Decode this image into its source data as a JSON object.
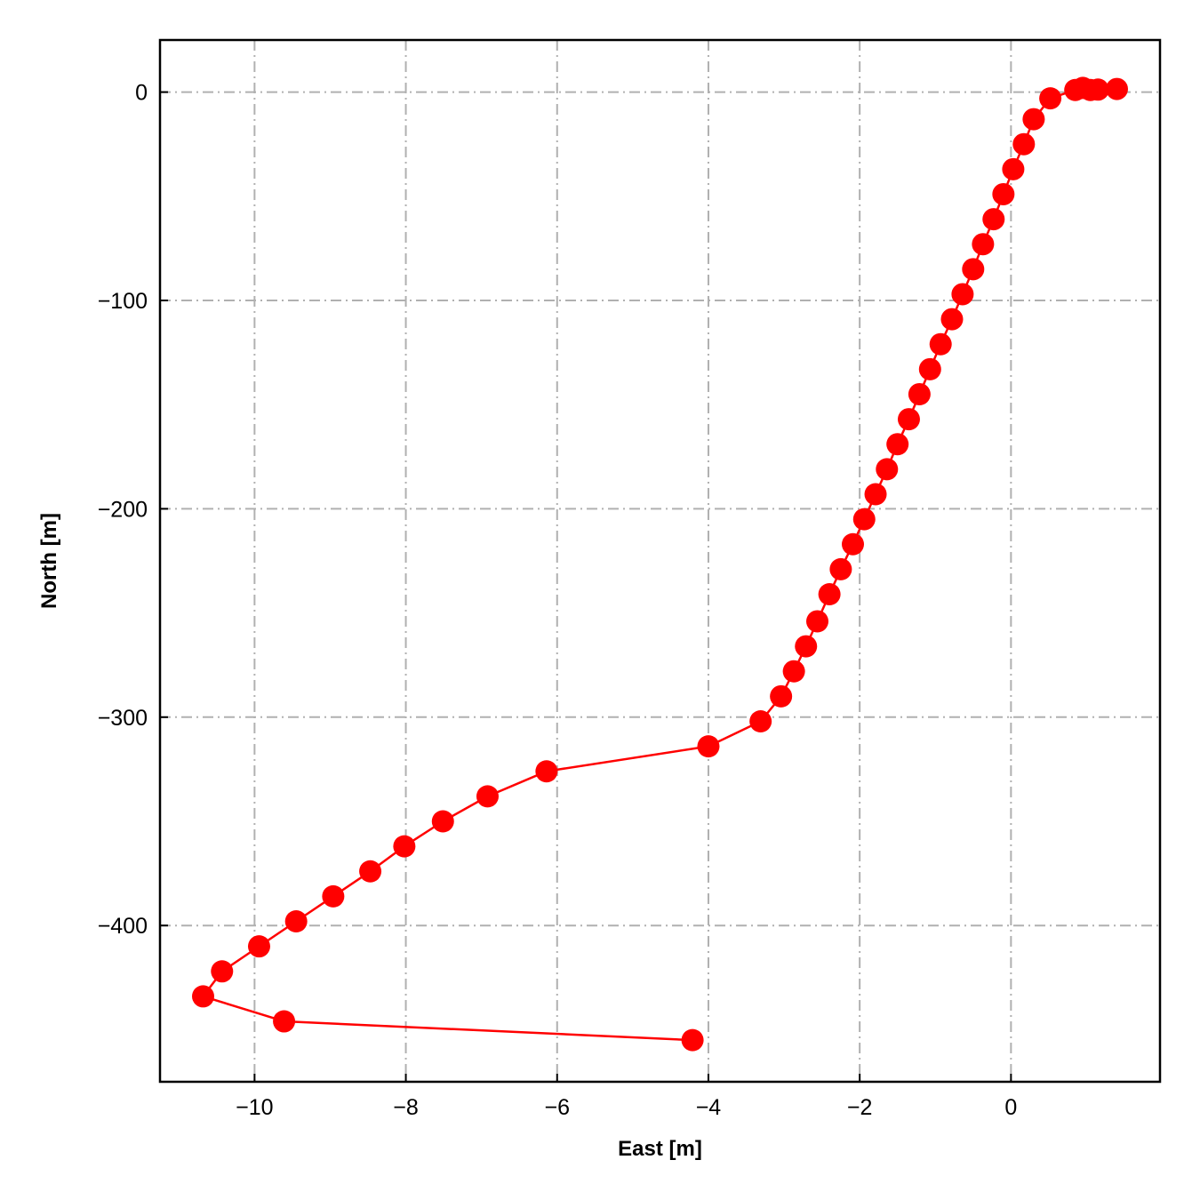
{
  "chart_data": {
    "type": "line",
    "title": "",
    "xlabel": "East [m]",
    "ylabel": "North [m]",
    "xlim": [
      -11.25,
      1.97
    ],
    "ylim": [
      -475,
      25
    ],
    "xticks": [
      -10,
      -8,
      -6,
      -4,
      -2,
      0
    ],
    "yticks": [
      0,
      -100,
      -200,
      -300,
      -400
    ],
    "xtick_labels": [
      "−10",
      "−8",
      "−6",
      "−4",
      "−2",
      "0"
    ],
    "ytick_labels": [
      "0",
      "−100",
      "−200",
      "−300",
      "−400"
    ],
    "grid": true,
    "legend": "none",
    "series": [
      {
        "color": "#ff0000",
        "marker": "circle",
        "points": [
          {
            "x": 1.4,
            "y": 1.5
          },
          {
            "x": 1.15,
            "y": 1.2
          },
          {
            "x": 1.05,
            "y": 1.0
          },
          {
            "x": 0.95,
            "y": 2.0
          },
          {
            "x": 0.85,
            "y": 1.0
          },
          {
            "x": 0.52,
            "y": -3
          },
          {
            "x": 0.3,
            "y": -13
          },
          {
            "x": 0.17,
            "y": -25
          },
          {
            "x": 0.03,
            "y": -37
          },
          {
            "x": -0.1,
            "y": -49
          },
          {
            "x": -0.23,
            "y": -61
          },
          {
            "x": -0.37,
            "y": -73
          },
          {
            "x": -0.5,
            "y": -85
          },
          {
            "x": -0.64,
            "y": -97
          },
          {
            "x": -0.78,
            "y": -109
          },
          {
            "x": -0.93,
            "y": -121
          },
          {
            "x": -1.07,
            "y": -133
          },
          {
            "x": -1.21,
            "y": -145
          },
          {
            "x": -1.35,
            "y": -157
          },
          {
            "x": -1.5,
            "y": -169
          },
          {
            "x": -1.64,
            "y": -181
          },
          {
            "x": -1.79,
            "y": -193
          },
          {
            "x": -1.94,
            "y": -205
          },
          {
            "x": -2.09,
            "y": -217
          },
          {
            "x": -2.25,
            "y": -229
          },
          {
            "x": -2.4,
            "y": -241
          },
          {
            "x": -2.56,
            "y": -254
          },
          {
            "x": -2.71,
            "y": -266
          },
          {
            "x": -2.87,
            "y": -278
          },
          {
            "x": -3.04,
            "y": -290
          },
          {
            "x": -3.31,
            "y": -302
          },
          {
            "x": -4.0,
            "y": -314
          },
          {
            "x": -6.14,
            "y": -326
          },
          {
            "x": -6.92,
            "y": -338
          },
          {
            "x": -7.51,
            "y": -350
          },
          {
            "x": -8.02,
            "y": -362
          },
          {
            "x": -8.47,
            "y": -374
          },
          {
            "x": -8.96,
            "y": -386
          },
          {
            "x": -9.45,
            "y": -398
          },
          {
            "x": -9.94,
            "y": -410
          },
          {
            "x": -10.43,
            "y": -422
          },
          {
            "x": -10.68,
            "y": -434
          },
          {
            "x": -9.61,
            "y": -446
          },
          {
            "x": -4.21,
            "y": -455
          }
        ]
      }
    ]
  }
}
